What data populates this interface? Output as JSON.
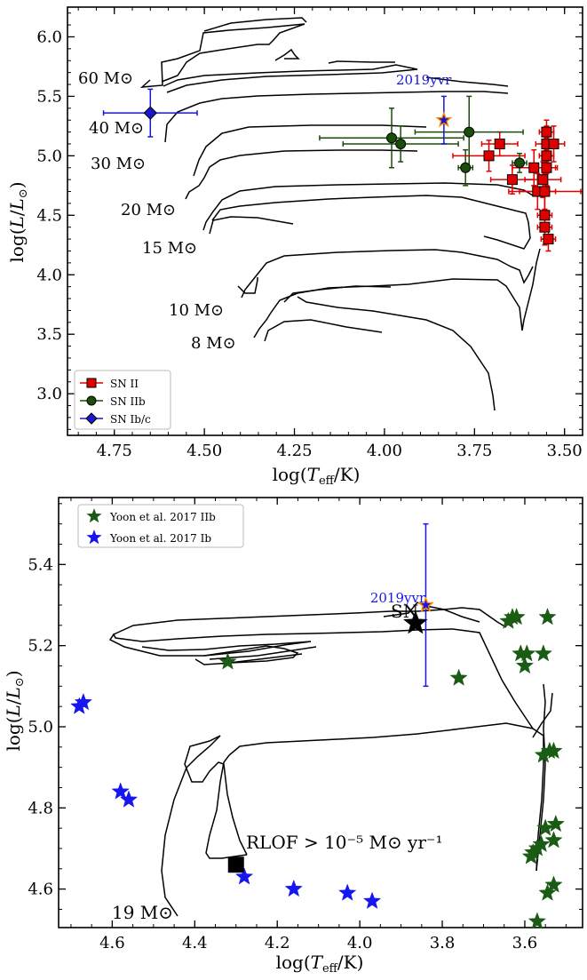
{
  "chart_data": [
    {
      "type": "scatter",
      "panel": "top",
      "xlabel": "log(T_eff/K)",
      "ylabel": "log(L/L_⊙)",
      "xlim": [
        4.88,
        3.45
      ],
      "ylim": [
        2.65,
        6.25
      ],
      "x_ticks": [
        "4.75",
        "4.50",
        "4.25",
        "4.00",
        "3.75",
        "3.50"
      ],
      "y_ticks": [
        "3.0",
        "3.5",
        "4.0",
        "4.5",
        "5.0",
        "5.5",
        "6.0"
      ],
      "legend": {
        "placement": "bottom-left",
        "entries": [
          "SN II",
          "SN IIb",
          "SN Ib/c"
        ]
      },
      "track_labels": [
        "60 M⊙",
        "40 M⊙",
        "30 M⊙",
        "20 M⊙",
        "15 M⊙",
        "10 M⊙",
        "8 M⊙"
      ],
      "annotation": "2019yvr",
      "colors": {
        "sn_ii": "#e00000",
        "sn_iib": "#1a4d0a",
        "sn_ibc": "#1818cc",
        "highlight": "#ff8c00",
        "track": "#000000"
      },
      "series": [
        {
          "name": "SN II",
          "points": [
            {
              "x": 3.68,
              "y": 5.1,
              "xerr": 0.05,
              "yerr": 0.1
            },
            {
              "x": 3.71,
              "y": 5.0,
              "xerr": 0.1,
              "yerr": 0.13
            },
            {
              "x": 3.645,
              "y": 4.8,
              "xerr": 0.06,
              "yerr": 0.12
            },
            {
              "x": 3.585,
              "y": 4.9,
              "xerr": 0.06,
              "yerr": 0.15
            },
            {
              "x": 3.56,
              "y": 4.8,
              "xerr": 0.05,
              "yerr": 0.15
            },
            {
              "x": 3.575,
              "y": 4.7,
              "xerr": 0.05,
              "yerr": 0.15
            },
            {
              "x": 3.555,
              "y": 4.7,
              "xerr": 0.1,
              "yerr": 0.15
            },
            {
              "x": 3.55,
              "y": 4.9,
              "xerr": 0.03,
              "yerr": 0.15
            },
            {
              "x": 3.55,
              "y": 5.0,
              "xerr": 0.02,
              "yerr": 0.15
            },
            {
              "x": 3.55,
              "y": 5.1,
              "xerr": 0.03,
              "yerr": 0.15
            },
            {
              "x": 3.55,
              "y": 5.2,
              "xerr": 0.02,
              "yerr": 0.1
            },
            {
              "x": 3.53,
              "y": 5.1,
              "xerr": 0.03,
              "yerr": 0.15
            },
            {
              "x": 3.555,
              "y": 4.5,
              "xerr": 0.02,
              "yerr": 0.2
            },
            {
              "x": 3.555,
              "y": 4.4,
              "xerr": 0.02,
              "yerr": 0.15
            },
            {
              "x": 3.545,
              "y": 4.3,
              "xerr": 0.02,
              "yerr": 0.1
            }
          ]
        },
        {
          "name": "SN IIb",
          "points": [
            {
              "x": 3.98,
              "y": 5.15,
              "xerr": 0.2,
              "yerr": 0.25
            },
            {
              "x": 3.955,
              "y": 5.1,
              "xerr": 0.16,
              "yerr": 0.15
            },
            {
              "x": 3.765,
              "y": 5.2,
              "xerr": 0.15,
              "yerr": 0.3
            },
            {
              "x": 3.775,
              "y": 4.9,
              "xerr": 0.02,
              "yerr": 0.15
            },
            {
              "x": 3.625,
              "y": 4.94,
              "xerr": 0.02,
              "yerr": 0.08
            }
          ]
        },
        {
          "name": "SN Ib/c",
          "points": [
            {
              "x": 4.65,
              "y": 5.36,
              "xerr": 0.13,
              "yerr": 0.2
            }
          ]
        },
        {
          "name": "2019yvr",
          "points": [
            {
              "x": 3.835,
              "y": 5.3,
              "xerr": 0,
              "yerr": 0.2
            }
          ]
        }
      ]
    },
    {
      "type": "scatter",
      "panel": "bottom",
      "xlabel": "log(T_eff/K)",
      "ylabel": "log(L/L_⊙)",
      "xlim": [
        4.73,
        3.46
      ],
      "ylim": [
        4.505,
        5.565
      ],
      "x_ticks": [
        "4.6",
        "4.4",
        "4.2",
        "4.0",
        "3.8",
        "3.6"
      ],
      "y_ticks": [
        "4.6",
        "4.8",
        "5.0",
        "5.2",
        "5.4"
      ],
      "legend": {
        "placement": "top-left",
        "entries": [
          "Yoon et al. 2017 IIb",
          "Yoon et al. 2017 Ib"
        ]
      },
      "annotations": [
        "2019yvr",
        "SN",
        "RLOF > 10⁻⁵ M⊙ yr⁻¹",
        "19 M⊙"
      ],
      "colors": {
        "iib": "#1a5c14",
        "ib": "#1616f0",
        "highlight": "#ff8c00",
        "track": "#000000"
      },
      "series": [
        {
          "name": "Yoon et al. 2017 IIb",
          "points": [
            {
              "x": 4.32,
              "y": 5.16
            },
            {
              "x": 3.76,
              "y": 5.12
            },
            {
              "x": 3.64,
              "y": 5.26
            },
            {
              "x": 3.63,
              "y": 5.27
            },
            {
              "x": 3.62,
              "y": 5.27
            },
            {
              "x": 3.61,
              "y": 5.18
            },
            {
              "x": 3.6,
              "y": 5.15
            },
            {
              "x": 3.595,
              "y": 5.18
            },
            {
              "x": 3.555,
              "y": 5.18
            },
            {
              "x": 3.545,
              "y": 5.27
            },
            {
              "x": 3.555,
              "y": 4.93
            },
            {
              "x": 3.54,
              "y": 4.94
            },
            {
              "x": 3.53,
              "y": 4.94
            },
            {
              "x": 3.58,
              "y": 4.69
            },
            {
              "x": 3.585,
              "y": 4.68
            },
            {
              "x": 3.57,
              "y": 4.7
            },
            {
              "x": 3.56,
              "y": 4.71
            },
            {
              "x": 3.55,
              "y": 4.75
            },
            {
              "x": 3.53,
              "y": 4.72
            },
            {
              "x": 3.525,
              "y": 4.76
            },
            {
              "x": 3.545,
              "y": 4.59
            },
            {
              "x": 3.53,
              "y": 4.61
            },
            {
              "x": 3.57,
              "y": 4.52
            }
          ]
        },
        {
          "name": "Yoon et al. 2017 Ib",
          "points": [
            {
              "x": 4.68,
              "y": 5.05
            },
            {
              "x": 4.67,
              "y": 5.06
            },
            {
              "x": 4.58,
              "y": 4.84
            },
            {
              "x": 4.56,
              "y": 4.82
            },
            {
              "x": 4.28,
              "y": 4.63
            },
            {
              "x": 4.16,
              "y": 4.6
            },
            {
              "x": 4.03,
              "y": 4.59
            },
            {
              "x": 3.97,
              "y": 4.57
            }
          ]
        },
        {
          "name": "SN",
          "points": [
            {
              "x": 3.865,
              "y": 5.255
            }
          ]
        },
        {
          "name": "2019yvr",
          "points": [
            {
              "x": 3.84,
              "y": 5.3,
              "yerr_low": 0.2,
              "yerr_high": 0.2
            }
          ]
        },
        {
          "name": "RLOF",
          "points": [
            {
              "x": 4.3,
              "y": 4.66
            }
          ]
        }
      ]
    }
  ]
}
